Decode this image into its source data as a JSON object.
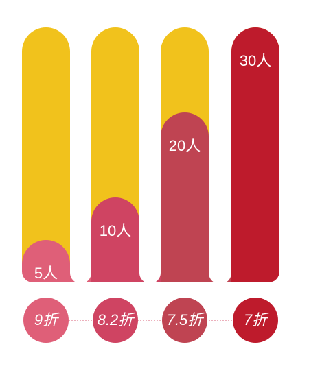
{
  "chart_data": {
    "type": "bar",
    "categories": [
      "9折",
      "8.2折",
      "7.5折",
      "7折"
    ],
    "values": [
      5,
      10,
      20,
      30
    ],
    "value_labels": [
      "5人",
      "10人",
      "20人",
      "30人"
    ],
    "colors": [
      "#df5f78",
      "#cf4462",
      "#bf4452",
      "#be1b2c"
    ],
    "track_color": "#f1c21c",
    "ylim": [
      0,
      30
    ]
  }
}
